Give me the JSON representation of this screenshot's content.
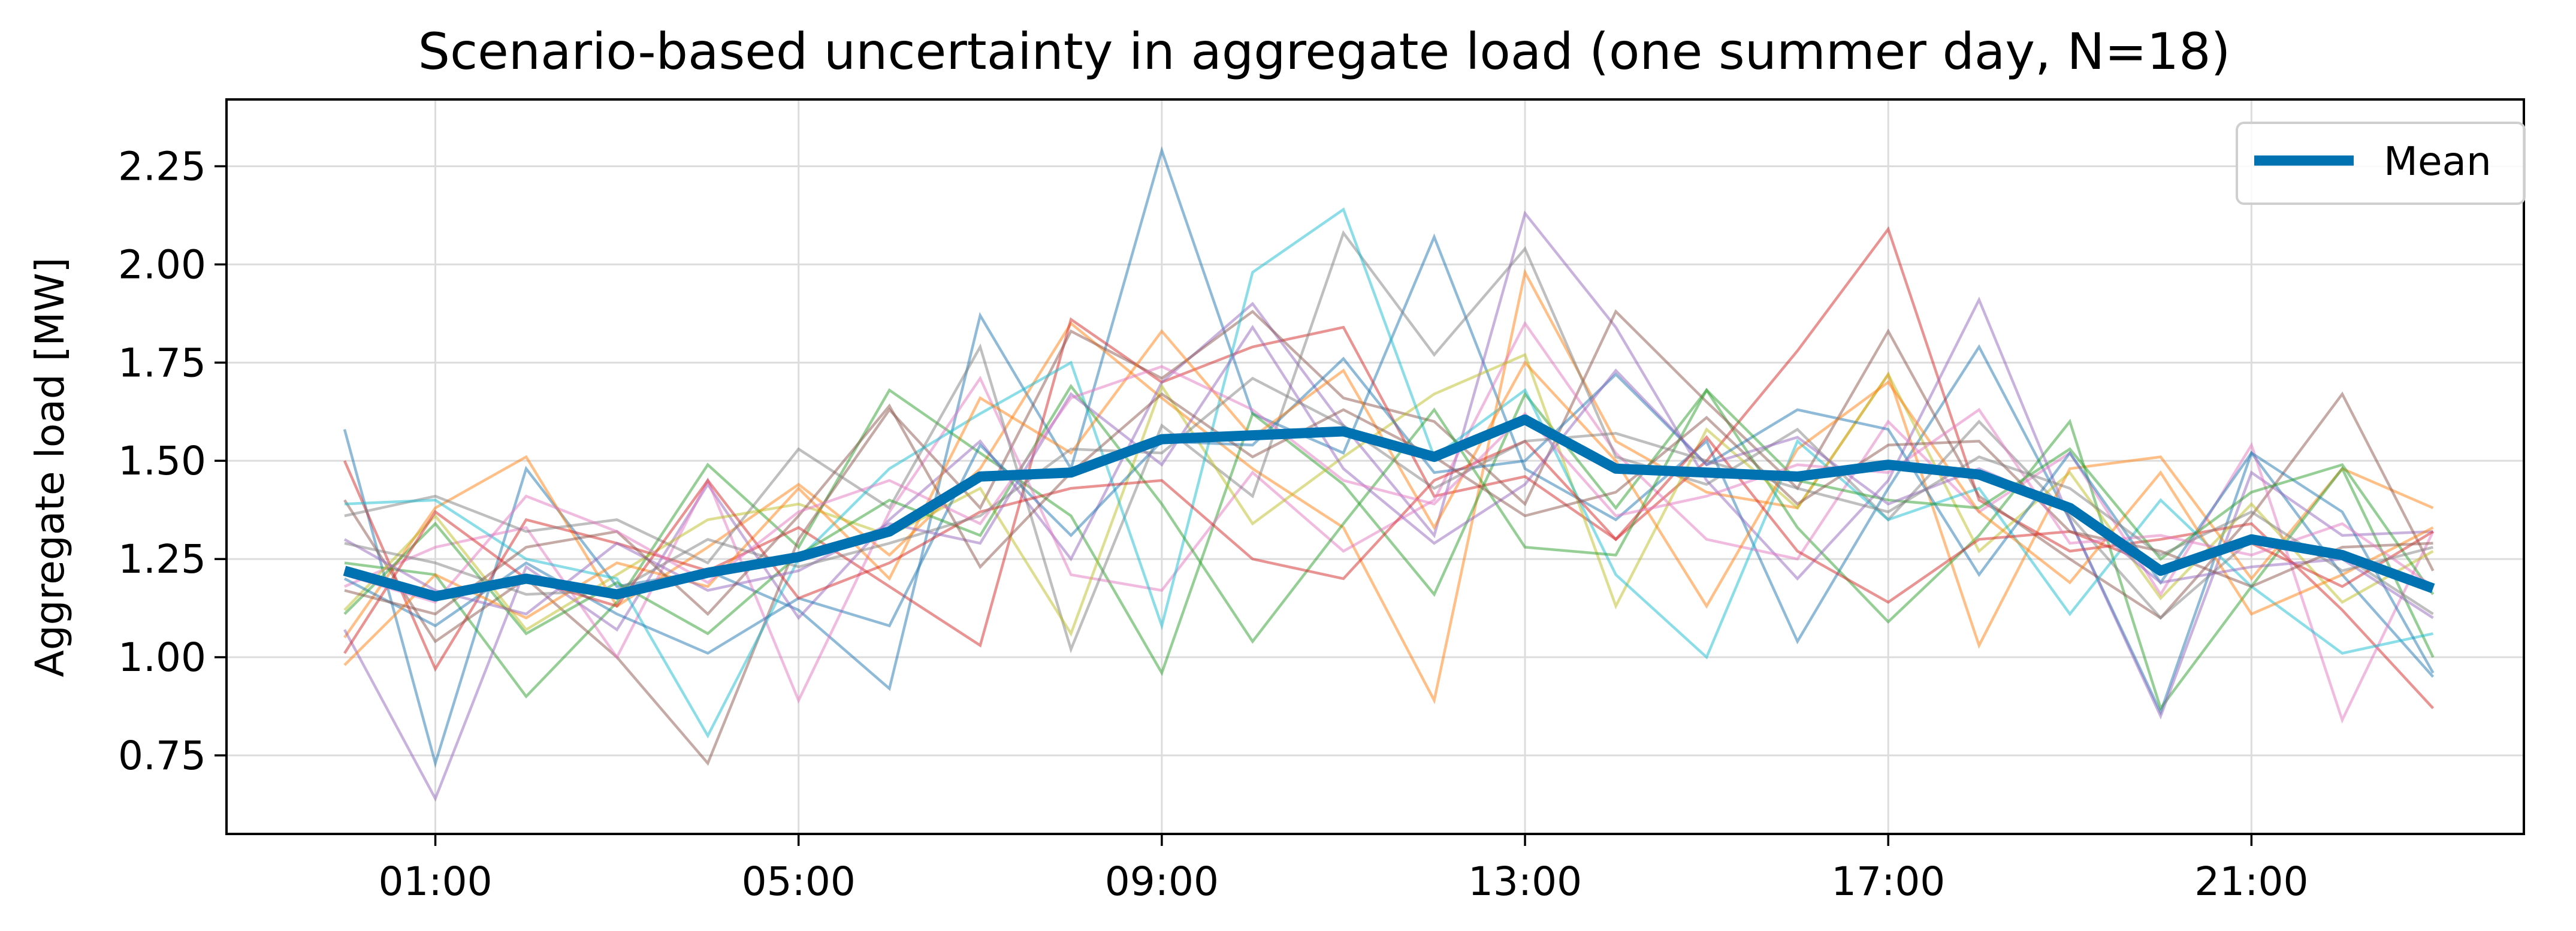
{
  "chart_data": {
    "type": "line",
    "title": "Scenario-based uncertainty in aggregate load (one summer day, N=18)",
    "xlabel": "",
    "ylabel": "Aggregate load [MW]",
    "xlim": [
      -1.3,
      24.0
    ],
    "ylim": [
      0.55,
      2.42
    ],
    "x_tick_values": [
      1,
      5,
      9,
      13,
      17,
      21
    ],
    "x_tick_labels": [
      "01:00",
      "05:00",
      "09:00",
      "13:00",
      "17:00",
      "21:00"
    ],
    "y_tick_values": [
      0.75,
      1.0,
      1.25,
      1.5,
      1.75,
      2.0,
      2.25
    ],
    "y_tick_labels": [
      "0.75",
      "1.00",
      "1.25",
      "1.50",
      "1.75",
      "2.00",
      "2.25"
    ],
    "grid": true,
    "legend": {
      "placement": "top-right",
      "entries": [
        "Mean"
      ]
    },
    "x": [
      0,
      1,
      2,
      3,
      4,
      5,
      6,
      7,
      8,
      9,
      10,
      11,
      12,
      13,
      14,
      15,
      16,
      17,
      18,
      19,
      20,
      21,
      22,
      23
    ],
    "mean": {
      "name": "Mean",
      "color": "#0072b2",
      "values": [
        1.22,
        1.155,
        1.2,
        1.16,
        1.215,
        1.255,
        1.32,
        1.46,
        1.47,
        1.555,
        1.565,
        1.575,
        1.51,
        1.605,
        1.48,
        1.47,
        1.46,
        1.49,
        1.465,
        1.38,
        1.22,
        1.3,
        1.26,
        1.175
      ]
    },
    "series": [
      {
        "color": "#1f77b4",
        "values": [
          1.58,
          0.73,
          1.48,
          1.18,
          1.22,
          1.12,
          0.92,
          1.87,
          1.48,
          2.29,
          1.62,
          1.52,
          2.07,
          1.48,
          1.35,
          1.55,
          1.04,
          1.43,
          1.79,
          1.35,
          0.86,
          1.52,
          1.21,
          0.95
        ]
      },
      {
        "color": "#ff7f0e",
        "values": [
          1.05,
          1.38,
          1.51,
          1.13,
          1.28,
          1.44,
          1.26,
          1.48,
          1.85,
          1.66,
          1.48,
          1.33,
          0.89,
          1.98,
          1.55,
          1.42,
          1.38,
          1.72,
          1.03,
          1.48,
          1.51,
          1.2,
          1.48,
          1.38
        ]
      },
      {
        "color": "#2ca02c",
        "values": [
          1.24,
          1.21,
          0.9,
          1.14,
          1.49,
          1.28,
          1.68,
          1.52,
          1.36,
          0.96,
          1.62,
          1.44,
          1.16,
          1.67,
          1.38,
          1.68,
          1.33,
          1.09,
          1.31,
          1.6,
          0.87,
          1.18,
          1.48,
          1.0
        ]
      },
      {
        "color": "#d62728",
        "values": [
          1.5,
          0.97,
          1.35,
          1.29,
          1.22,
          1.33,
          1.18,
          1.03,
          1.86,
          1.7,
          1.79,
          1.84,
          1.41,
          1.46,
          1.3,
          1.5,
          1.78,
          2.09,
          1.4,
          1.27,
          1.3,
          1.34,
          1.12,
          0.87
        ]
      },
      {
        "color": "#9467bd",
        "values": [
          1.07,
          0.64,
          1.23,
          1.07,
          1.44,
          1.1,
          1.35,
          1.55,
          1.25,
          1.7,
          1.9,
          1.59,
          1.31,
          2.13,
          1.84,
          1.45,
          1.2,
          1.45,
          1.91,
          1.35,
          0.85,
          1.47,
          1.31,
          1.32
        ]
      },
      {
        "color": "#8c564b",
        "values": [
          1.4,
          1.04,
          1.2,
          1.0,
          0.73,
          1.3,
          1.63,
          1.38,
          1.83,
          1.71,
          1.88,
          1.66,
          1.6,
          1.39,
          1.88,
          1.65,
          1.43,
          1.83,
          1.41,
          1.25,
          1.1,
          1.36,
          1.67,
          1.22
        ]
      },
      {
        "color": "#e377c2",
        "values": [
          1.18,
          1.28,
          1.33,
          1.0,
          1.45,
          0.89,
          1.37,
          1.71,
          1.21,
          1.17,
          1.47,
          1.27,
          1.4,
          1.85,
          1.52,
          1.3,
          1.25,
          1.6,
          1.37,
          1.52,
          1.16,
          1.54,
          0.84,
          1.32
        ]
      },
      {
        "color": "#7f7f7f",
        "values": [
          1.36,
          1.41,
          1.32,
          1.35,
          1.24,
          1.53,
          1.38,
          1.79,
          1.02,
          1.59,
          1.41,
          2.08,
          1.77,
          2.04,
          1.51,
          1.44,
          1.58,
          1.35,
          1.6,
          1.36,
          1.1,
          1.3,
          1.26,
          1.11
        ]
      },
      {
        "color": "#bcbd22",
        "values": [
          1.12,
          1.36,
          1.07,
          1.21,
          1.35,
          1.39,
          1.31,
          1.43,
          1.06,
          1.69,
          1.34,
          1.51,
          1.67,
          1.77,
          1.13,
          1.58,
          1.38,
          1.72,
          1.27,
          1.47,
          1.15,
          1.39,
          1.14,
          1.27
        ]
      },
      {
        "color": "#17becf",
        "values": [
          1.39,
          1.4,
          1.25,
          1.2,
          0.8,
          1.25,
          1.48,
          1.62,
          1.75,
          1.08,
          1.98,
          2.14,
          1.51,
          1.68,
          1.21,
          1.0,
          1.55,
          1.35,
          1.43,
          1.11,
          1.4,
          1.18,
          1.01,
          1.06
        ]
      },
      {
        "color": "#1f77b4",
        "values": [
          1.2,
          1.08,
          1.24,
          1.11,
          1.01,
          1.15,
          1.08,
          1.54,
          1.31,
          1.55,
          1.54,
          1.76,
          1.47,
          1.5,
          1.72,
          1.49,
          1.63,
          1.58,
          1.21,
          1.52,
          1.19,
          1.52,
          1.37,
          0.96
        ]
      },
      {
        "color": "#ff7f0e",
        "values": [
          0.98,
          1.21,
          1.1,
          1.24,
          1.18,
          1.43,
          1.2,
          1.66,
          1.52,
          1.83,
          1.56,
          1.73,
          1.33,
          1.75,
          1.5,
          1.13,
          1.53,
          1.7,
          1.37,
          1.19,
          1.47,
          1.11,
          1.21,
          1.33
        ]
      },
      {
        "color": "#2ca02c",
        "values": [
          1.11,
          1.34,
          1.06,
          1.19,
          1.06,
          1.26,
          1.4,
          1.31,
          1.69,
          1.39,
          1.04,
          1.34,
          1.63,
          1.28,
          1.26,
          1.68,
          1.45,
          1.4,
          1.38,
          1.53,
          1.25,
          1.42,
          1.49,
          1.16
        ]
      },
      {
        "color": "#d62728",
        "values": [
          1.01,
          1.37,
          1.2,
          1.13,
          1.45,
          1.15,
          1.24,
          1.37,
          1.43,
          1.45,
          1.25,
          1.2,
          1.45,
          1.55,
          1.3,
          1.56,
          1.27,
          1.14,
          1.3,
          1.32,
          1.23,
          1.29,
          1.18,
          1.32
        ]
      },
      {
        "color": "#9467bd",
        "values": [
          1.3,
          1.17,
          1.11,
          1.29,
          1.17,
          1.22,
          1.34,
          1.29,
          1.67,
          1.49,
          1.84,
          1.48,
          1.29,
          1.44,
          1.73,
          1.49,
          1.56,
          1.39,
          1.48,
          1.38,
          1.19,
          1.23,
          1.25,
          1.1
        ]
      },
      {
        "color": "#8c564b",
        "values": [
          1.17,
          1.11,
          1.28,
          1.32,
          1.11,
          1.36,
          1.64,
          1.23,
          1.47,
          1.67,
          1.51,
          1.63,
          1.51,
          1.36,
          1.42,
          1.61,
          1.39,
          1.54,
          1.55,
          1.32,
          1.27,
          1.18,
          1.28,
          1.29
        ]
      },
      {
        "color": "#e377c2",
        "values": [
          1.21,
          1.14,
          1.41,
          1.32,
          1.19,
          1.37,
          1.45,
          1.34,
          1.66,
          1.74,
          1.63,
          1.45,
          1.39,
          1.62,
          1.36,
          1.41,
          1.49,
          1.47,
          1.63,
          1.29,
          1.31,
          1.26,
          1.34,
          1.18
        ]
      },
      {
        "color": "#7f7f7f",
        "values": [
          1.29,
          1.24,
          1.16,
          1.17,
          1.3,
          1.23,
          1.29,
          1.36,
          1.53,
          1.52,
          1.71,
          1.59,
          1.43,
          1.55,
          1.57,
          1.5,
          1.43,
          1.37,
          1.51,
          1.43,
          1.26,
          1.37,
          1.22,
          1.28
        ]
      }
    ]
  }
}
